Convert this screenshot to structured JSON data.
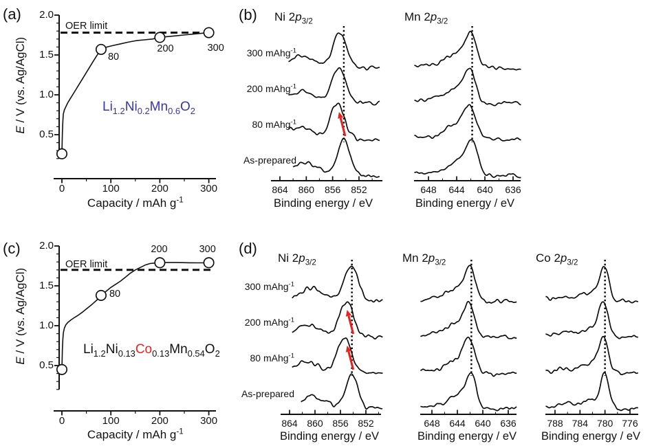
{
  "colors": {
    "ink": "#111111",
    "accent_red": "#e8231f",
    "accent_blue": "#3535ad"
  },
  "chart_data": [
    {
      "id": "a",
      "tag": "(a)",
      "type": "line",
      "xlabel": "Capacity / mAh g^{-1}",
      "ylabel": "*E* / V (vs. Ag/AgCl)",
      "xticks": [
        0,
        100,
        200,
        300
      ],
      "xminor": [
        50,
        150,
        250
      ],
      "yticks": [
        "0.5",
        "1.0",
        "1.5",
        "2.0"
      ],
      "ylim": [
        0.2,
        2.0
      ],
      "oer": {
        "label": "OER limit",
        "value": 1.78
      },
      "formula": {
        "text": "Li_{1.2}Ni_{0.2}Mn_{0.6}O_{2}",
        "color": "#3535ad"
      },
      "series": {
        "name": "charging potential",
        "x": [
          0,
          1,
          2,
          3,
          5,
          8,
          12,
          18,
          25,
          33,
          42,
          52,
          62,
          71,
          80,
          92,
          105,
          120,
          135,
          152,
          168,
          185,
          200,
          215,
          232,
          248,
          265,
          282,
          300
        ],
        "y": [
          0.26,
          0.52,
          0.67,
          0.76,
          0.81,
          0.85,
          0.9,
          0.96,
          1.03,
          1.11,
          1.2,
          1.3,
          1.4,
          1.49,
          1.57,
          1.6,
          1.62,
          1.64,
          1.66,
          1.68,
          1.69,
          1.7,
          1.72,
          1.73,
          1.74,
          1.75,
          1.76,
          1.77,
          1.78
        ]
      },
      "markers": [
        {
          "x": 0,
          "y": 0.26,
          "label": "",
          "label_offset": [
            0,
            0
          ]
        },
        {
          "x": 80,
          "y": 1.57,
          "label": "80",
          "label_offset": [
            10,
            4
          ]
        },
        {
          "x": 200,
          "y": 1.72,
          "label": "200",
          "label_offset": [
            -4,
            10
          ]
        },
        {
          "x": 300,
          "y": 1.78,
          "label": "300",
          "label_offset": [
            -2,
            15
          ]
        }
      ]
    },
    {
      "id": "b",
      "tag": "(b)",
      "type": "xps",
      "xlabel": "Binding energy / eV",
      "curve_labels": [
        "300 mAhg^{-1}",
        "200 mAhg^{-1}",
        "80 mAhg^{-1}",
        "As-prepared"
      ],
      "subpanels": [
        {
          "element": "Ni",
          "title": "Ni 2*p*_{3/2}",
          "xticks": [
            864,
            860,
            856,
            852
          ],
          "dotted_line_ev": 854.3,
          "curves": [
            {
              "label": "300 mAhg^{-1}",
              "seed": 11,
              "peaks": [
                {
                  "c": 854.9,
                  "w": 1.45,
                  "a": 1.0
                },
                {
                  "c": 861.2,
                  "w": 2.4,
                  "a": 0.19
                }
              ],
              "step": {
                "c": 858.1,
                "h": 0.2
              }
            },
            {
              "label": "200 mAhg^{-1}",
              "seed": 12,
              "peaks": [
                {
                  "c": 855.1,
                  "w": 1.5,
                  "a": 1.0
                },
                {
                  "c": 861.4,
                  "w": 2.4,
                  "a": 0.19
                }
              ],
              "step": {
                "c": 858.3,
                "h": 0.2
              }
            },
            {
              "label": "80 mAhg^{-1}",
              "seed": 13,
              "peaks": [
                {
                  "c": 855.3,
                  "w": 1.55,
                  "a": 1.0
                },
                {
                  "c": 861.6,
                  "w": 2.4,
                  "a": 0.18
                }
              ],
              "step": {
                "c": 858.5,
                "h": 0.2
              }
            },
            {
              "label": "As-prepared",
              "seed": 14,
              "peaks": [
                {
                  "c": 854.3,
                  "w": 1.35,
                  "a": 1.0
                },
                {
                  "c": 860.6,
                  "w": 2.2,
                  "a": 0.2
                }
              ],
              "step": {
                "c": 857.5,
                "h": 0.2
              }
            }
          ],
          "arrows": [
            {
              "from": 3,
              "to": 2,
              "color": "#e8231f"
            }
          ]
        },
        {
          "element": "Mn",
          "title": "Mn 2*p*_{3/2}",
          "xticks": [
            648,
            644,
            640,
            636
          ],
          "dotted_line_ev": 641.8,
          "curves": [
            {
              "label": "300 mAhg^{-1}",
              "seed": 21,
              "peaks": [
                {
                  "c": 641.95,
                  "w": 1.15,
                  "a": 1.0
                },
                {
                  "c": 643.85,
                  "w": 2.1,
                  "a": 0.42
                }
              ],
              "step": {
                "c": 643.9,
                "h": 0.11
              }
            },
            {
              "label": "200 mAhg^{-1}",
              "seed": 22,
              "peaks": [
                {
                  "c": 642.15,
                  "w": 1.15,
                  "a": 1.0
                },
                {
                  "c": 644.05,
                  "w": 2.1,
                  "a": 0.42
                }
              ],
              "step": {
                "c": 644.1,
                "h": 0.11
              }
            },
            {
              "label": "80 mAhg^{-1}",
              "seed": 23,
              "peaks": [
                {
                  "c": 642.15,
                  "w": 1.2,
                  "a": 1.0
                },
                {
                  "c": 644.05,
                  "w": 2.15,
                  "a": 0.42
                }
              ],
              "step": {
                "c": 644.1,
                "h": 0.11
              }
            },
            {
              "label": "As-prepared",
              "seed": 24,
              "peaks": [
                {
                  "c": 641.8,
                  "w": 1.1,
                  "a": 1.0
                },
                {
                  "c": 643.7,
                  "w": 2.0,
                  "a": 0.44
                }
              ],
              "step": {
                "c": 643.8,
                "h": 0.11
              }
            }
          ],
          "arrows": []
        }
      ]
    },
    {
      "id": "c",
      "tag": "(c)",
      "type": "line",
      "xlabel": "Capacity / mAh g^{-1}",
      "ylabel": "*E* / V (vs. Ag/AgCl)",
      "xticks": [
        0,
        100,
        200,
        300
      ],
      "xminor": [
        50,
        150,
        250
      ],
      "yticks": [
        "0.5",
        "1.0",
        "1.5",
        "2.0"
      ],
      "ylim": [
        0.2,
        2.0
      ],
      "oer": {
        "label": "OER limit",
        "value": 1.7
      },
      "formula": {
        "text": "Li_{1.2}Ni_{0.13}%{Co}_{0.13}Mn_{0.54}O_{2}",
        "color": "#111111"
      },
      "series": {
        "name": "charging potential",
        "x": [
          0,
          1,
          2,
          3,
          5,
          8,
          12,
          18,
          25,
          33,
          42,
          52,
          62,
          71,
          80,
          90,
          100,
          110,
          120,
          130,
          140,
          150,
          160,
          170,
          180,
          190,
          200,
          215,
          230,
          245,
          260,
          275,
          290,
          300
        ],
        "y": [
          0.45,
          0.7,
          0.83,
          0.91,
          0.97,
          1.01,
          1.04,
          1.07,
          1.1,
          1.13,
          1.17,
          1.22,
          1.27,
          1.32,
          1.38,
          1.43,
          1.48,
          1.52,
          1.56,
          1.61,
          1.66,
          1.7,
          1.73,
          1.76,
          1.78,
          1.786,
          1.79,
          1.792,
          1.792,
          1.791,
          1.79,
          1.789,
          1.789,
          1.79
        ]
      },
      "markers": [
        {
          "x": 0,
          "y": 0.45,
          "label": "",
          "label_offset": [
            0,
            0
          ]
        },
        {
          "x": 80,
          "y": 1.38,
          "label": "80",
          "label_offset": [
            12,
            -9
          ]
        },
        {
          "x": 200,
          "y": 1.79,
          "label": "200",
          "label_offset": [
            -13,
            -26
          ]
        },
        {
          "x": 300,
          "y": 1.79,
          "label": "300",
          "label_offset": [
            -14,
            -26
          ]
        }
      ]
    },
    {
      "id": "d",
      "tag": "(d)",
      "type": "xps",
      "xlabel": "Binding energy / eV",
      "curve_labels": [
        "300 mAhg^{-1}",
        "200 mAhg^{-1}",
        "80 mAhg^{-1}",
        "As-prepared"
      ],
      "subpanels": [
        {
          "element": "Ni",
          "title": "Ni 2*p*_{3/2}",
          "xticks": [
            864,
            860,
            856,
            852
          ],
          "dotted_line_ev": 854.2,
          "curves": [
            {
              "label": "300 mAhg^{-1}",
              "seed": 31,
              "peaks": [
                {
                  "c": 854.3,
                  "w": 1.5,
                  "a": 1.0
                },
                {
                  "c": 860.6,
                  "w": 2.5,
                  "a": 0.21
                }
              ],
              "step": {
                "c": 857.5,
                "h": 0.2
              }
            },
            {
              "label": "200 mAhg^{-1}",
              "seed": 32,
              "peaks": [
                {
                  "c": 855.0,
                  "w": 1.5,
                  "a": 1.0
                },
                {
                  "c": 861.3,
                  "w": 2.4,
                  "a": 0.19
                }
              ],
              "step": {
                "c": 858.2,
                "h": 0.2
              }
            },
            {
              "label": "80 mAhg^{-1}",
              "seed": 33,
              "peaks": [
                {
                  "c": 855.4,
                  "w": 1.55,
                  "a": 1.0
                },
                {
                  "c": 861.7,
                  "w": 2.4,
                  "a": 0.18
                }
              ],
              "step": {
                "c": 858.6,
                "h": 0.2
              }
            },
            {
              "label": "As-prepared",
              "seed": 34,
              "peaks": [
                {
                  "c": 854.2,
                  "w": 1.35,
                  "a": 1.0
                },
                {
                  "c": 860.5,
                  "w": 2.2,
                  "a": 0.2
                }
              ],
              "step": {
                "c": 857.4,
                "h": 0.2
              }
            }
          ],
          "arrows": [
            {
              "from": 3,
              "to": 2,
              "color": "#e8231f"
            },
            {
              "from": 2,
              "to": 1,
              "color": "#e8231f"
            }
          ]
        },
        {
          "element": "Mn",
          "title": "Mn 2*p*_{3/2}",
          "xticks": [
            648,
            644,
            640,
            636
          ],
          "dotted_line_ev": 641.8,
          "curves": [
            {
              "label": "300 mAhg^{-1}",
              "seed": 41,
              "peaks": [
                {
                  "c": 641.95,
                  "w": 1.15,
                  "a": 1.0
                },
                {
                  "c": 643.85,
                  "w": 2.1,
                  "a": 0.42
                }
              ],
              "step": {
                "c": 643.9,
                "h": 0.11
              }
            },
            {
              "label": "200 mAhg^{-1}",
              "seed": 42,
              "peaks": [
                {
                  "c": 642.15,
                  "w": 1.15,
                  "a": 1.0
                },
                {
                  "c": 644.05,
                  "w": 2.1,
                  "a": 0.42
                }
              ],
              "step": {
                "c": 644.1,
                "h": 0.11
              }
            },
            {
              "label": "80 mAhg^{-1}",
              "seed": 43,
              "peaks": [
                {
                  "c": 642.15,
                  "w": 1.2,
                  "a": 1.0
                },
                {
                  "c": 644.05,
                  "w": 2.15,
                  "a": 0.42
                }
              ],
              "step": {
                "c": 644.1,
                "h": 0.11
              }
            },
            {
              "label": "As-prepared",
              "seed": 44,
              "peaks": [
                {
                  "c": 641.8,
                  "w": 1.1,
                  "a": 1.0
                },
                {
                  "c": 643.7,
                  "w": 2.0,
                  "a": 0.44
                }
              ],
              "step": {
                "c": 643.8,
                "h": 0.11
              }
            }
          ],
          "arrows": []
        },
        {
          "element": "Co",
          "title": "Co 2*p*_{3/2}",
          "xticks": [
            788,
            784,
            780,
            776
          ],
          "dotted_line_ev": 780.0,
          "curves": [
            {
              "label": "300 mAhg^{-1}",
              "seed": 51,
              "peaks": [
                {
                  "c": 780.05,
                  "w": 1.0,
                  "a": 1.0
                },
                {
                  "c": 781.75,
                  "w": 1.8,
                  "a": 0.27
                },
                {
                  "c": 786.2,
                  "w": 2.2,
                  "a": 0.05
                }
              ],
              "step": {
                "c": 782.0,
                "h": 0.1
              }
            },
            {
              "label": "200 mAhg^{-1}",
              "seed": 52,
              "peaks": [
                {
                  "c": 780.2,
                  "w": 1.0,
                  "a": 1.0
                },
                {
                  "c": 781.9,
                  "w": 1.8,
                  "a": 0.27
                },
                {
                  "c": 786.3,
                  "w": 2.2,
                  "a": 0.05
                }
              ],
              "step": {
                "c": 782.1,
                "h": 0.1
              }
            },
            {
              "label": "80 mAhg^{-1}",
              "seed": 53,
              "peaks": [
                {
                  "c": 780.2,
                  "w": 1.0,
                  "a": 1.0
                },
                {
                  "c": 781.9,
                  "w": 1.85,
                  "a": 0.28
                },
                {
                  "c": 786.3,
                  "w": 2.2,
                  "a": 0.05
                }
              ],
              "step": {
                "c": 782.1,
                "h": 0.1
              }
            },
            {
              "label": "As-prepared",
              "seed": 54,
              "peaks": [
                {
                  "c": 780.0,
                  "w": 0.95,
                  "a": 1.0
                },
                {
                  "c": 781.7,
                  "w": 1.75,
                  "a": 0.27
                },
                {
                  "c": 786.1,
                  "w": 2.2,
                  "a": 0.05
                }
              ],
              "step": {
                "c": 781.9,
                "h": 0.1
              }
            }
          ],
          "arrows": []
        }
      ]
    }
  ]
}
